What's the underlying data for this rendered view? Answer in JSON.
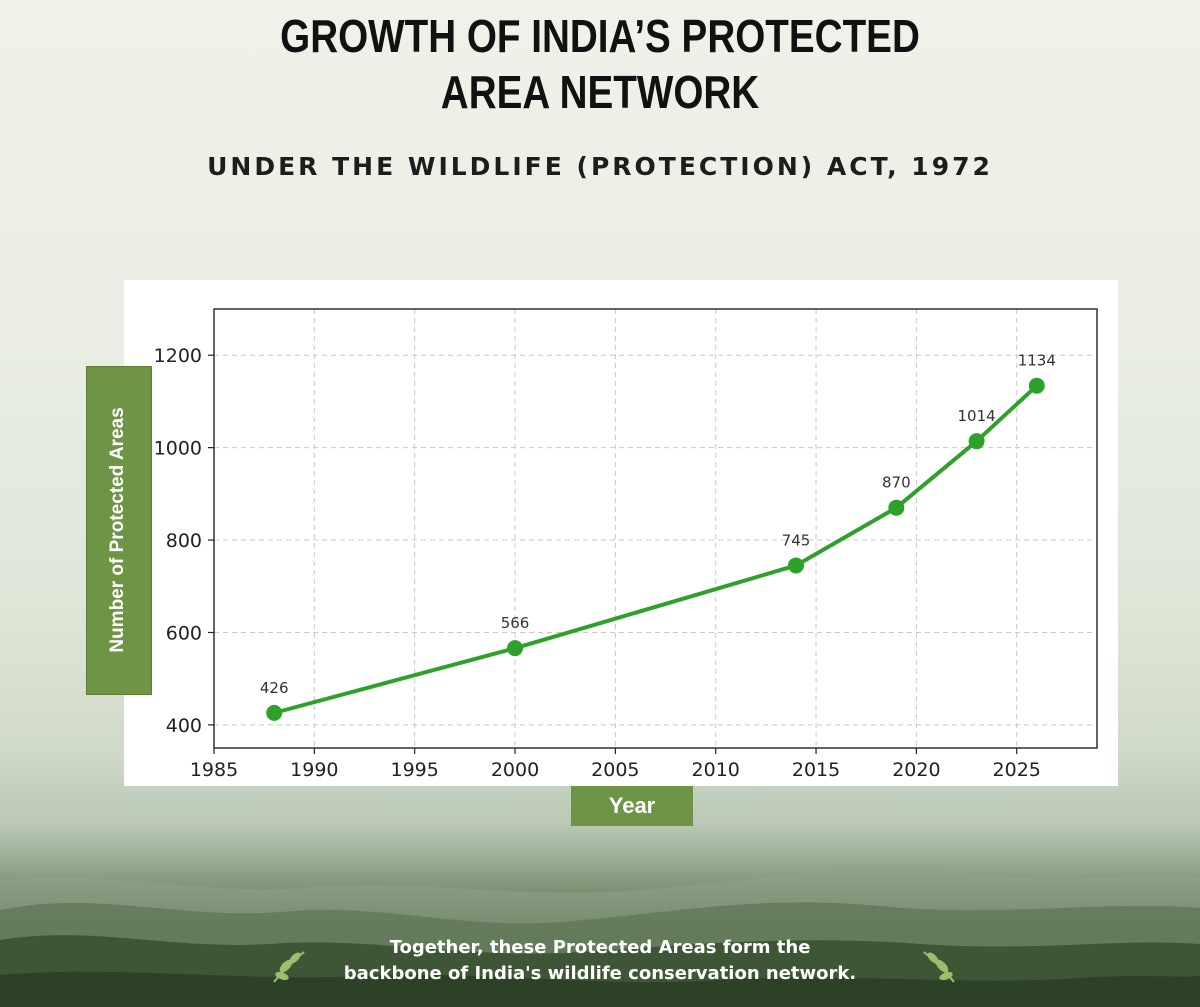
{
  "title_line1": "GROWTH OF INDIA’S PROTECTED",
  "title_line2": "AREA NETWORK",
  "subtitle": "UNDER THE WILDLIFE (PROTECTION) ACT, 1972",
  "footer_line1": "Together, these Protected Areas form the",
  "footer_line2": "backbone of India's wildlife conservation network.",
  "colors": {
    "line": "#2ea12a",
    "label_bg": "#6e9446",
    "grid": "#c8c8c8"
  },
  "icons": [
    "leaf-sprig-icon-left",
    "leaf-sprig-icon-right"
  ],
  "chart_data": {
    "type": "line",
    "xlabel": "Year",
    "ylabel": "Number of Protected Areas",
    "xlim": [
      1985,
      2029
    ],
    "ylim": [
      350,
      1300
    ],
    "xticks": [
      1985,
      1990,
      1995,
      2000,
      2005,
      2010,
      2015,
      2020,
      2025
    ],
    "yticks": [
      400,
      600,
      800,
      1000,
      1200
    ],
    "grid": true,
    "series": [
      {
        "x": [
          1988,
          2000,
          2014,
          2019,
          2023,
          2026
        ],
        "values": [
          426,
          566,
          745,
          870,
          1014,
          1134
        ],
        "data_labels": [
          "426",
          "566",
          "745",
          "870",
          "1014",
          "1134"
        ]
      }
    ]
  }
}
